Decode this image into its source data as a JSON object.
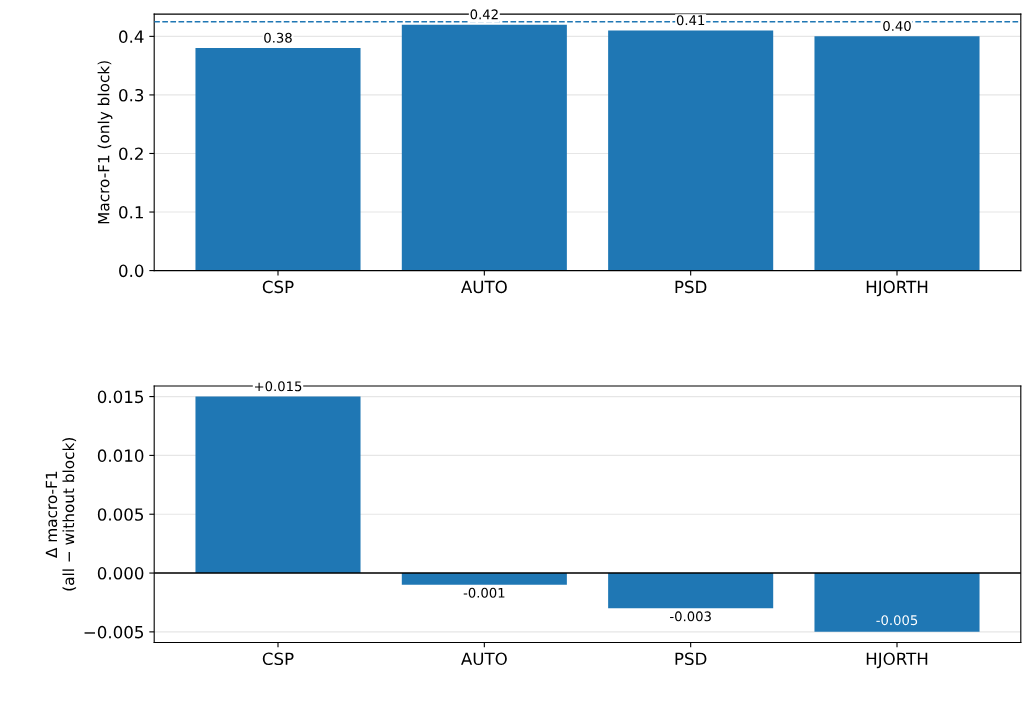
{
  "chart_data": [
    {
      "type": "bar",
      "ylabel": "Macro-F1 (only block)",
      "categories": [
        "CSP",
        "AUTO",
        "PSD",
        "HJORTH"
      ],
      "values": [
        0.38,
        0.42,
        0.41,
        0.4
      ],
      "color": "#1f77b4",
      "value_labels": [
        "0.38",
        "0.42",
        "0.41",
        "0.40"
      ],
      "ylim": [
        0,
        0.438
      ],
      "yticks": [
        {
          "value": 0,
          "label": "0.0"
        },
        {
          "value": 0.1,
          "label": "0.1"
        },
        {
          "value": 0.2,
          "label": "0.2"
        },
        {
          "value": 0.3,
          "label": "0.3"
        },
        {
          "value": 0.4,
          "label": "0.4"
        }
      ],
      "grid": "y",
      "ref_lines": [
        {
          "axis": "y",
          "value": 0.425,
          "color": "#1f77b4",
          "line_style": "dashed"
        }
      ]
    },
    {
      "type": "bar",
      "ylabel": "Δ macro-F1\n(all − without block)",
      "categories": [
        "CSP",
        "AUTO",
        "PSD",
        "HJORTH"
      ],
      "values": [
        0.015,
        -0.001,
        -0.003,
        -0.005
      ],
      "color": "#1f77b4",
      "value_labels": [
        "+0.015",
        "-0.001",
        "-0.003",
        "-0.005"
      ],
      "ylim": [
        -0.0059,
        0.0159
      ],
      "yticks": [
        {
          "value": -0.005,
          "label": "−0.005"
        },
        {
          "value": 0,
          "label": "0.000"
        },
        {
          "value": 0.005,
          "label": "0.005"
        },
        {
          "value": 0.01,
          "label": "0.010"
        },
        {
          "value": 0.015,
          "label": "0.015"
        }
      ],
      "grid": "y",
      "ref_lines": [
        {
          "axis": "y",
          "value": 0,
          "color": "#000000",
          "line_style": "solid"
        }
      ]
    }
  ]
}
